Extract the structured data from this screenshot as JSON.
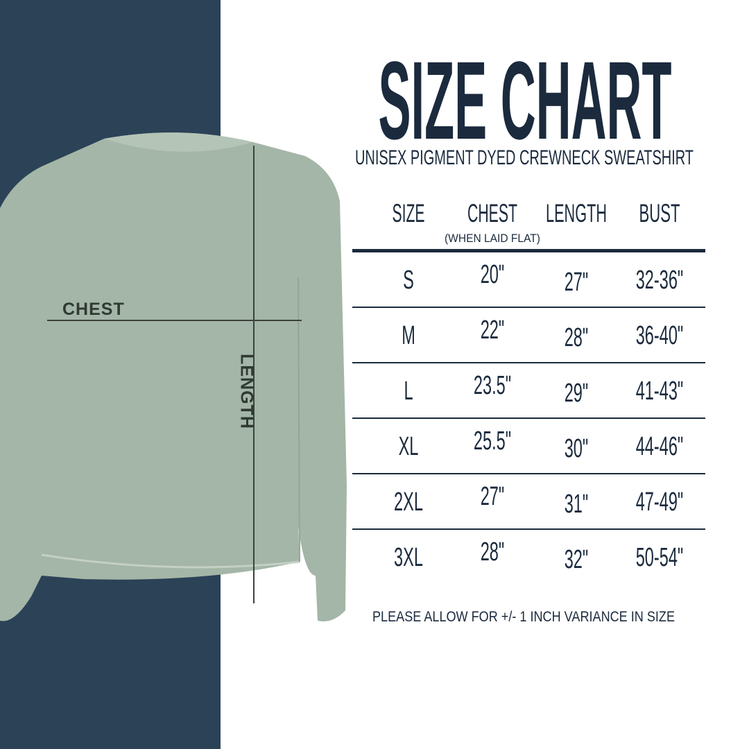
{
  "title": "SIZE CHART",
  "subtitle": "UNISEX PIGMENT DYED CREWNECK SWEATSHIRT",
  "colors": {
    "navy_panel": "#2c4257",
    "text": "#1b2a3d",
    "shirt": "#a4b6a7"
  },
  "illustration": {
    "chest_label": "CHEST",
    "length_label": "LENGTH"
  },
  "table": {
    "headers": [
      "SIZE",
      "CHEST",
      "LENGTH",
      "BUST"
    ],
    "chest_note": "(WHEN LAID FLAT)",
    "rows": [
      [
        "S",
        "20\"",
        "27\"",
        "32-36\""
      ],
      [
        "M",
        "22\"",
        "28\"",
        "36-40\""
      ],
      [
        "L",
        "23.5\"",
        "29\"",
        "41-43\""
      ],
      [
        "XL",
        "25.5\"",
        "30\"",
        "44-46\""
      ],
      [
        "2XL",
        "27\"",
        "31\"",
        "47-49\""
      ],
      [
        "3XL",
        "28\"",
        "32\"",
        "50-54\""
      ]
    ]
  },
  "note": "PLEASE ALLOW FOR +/- 1 INCH VARIANCE IN SIZE"
}
